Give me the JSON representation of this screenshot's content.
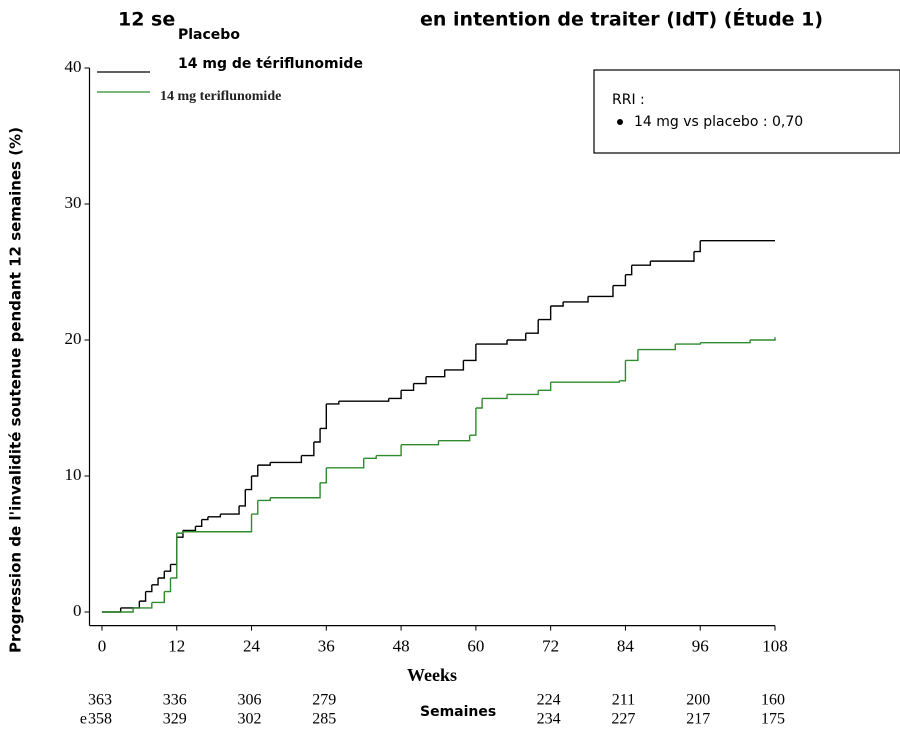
{
  "chart_data": {
    "type": "step",
    "title_fragments": [
      "12 se",
      "en intention de traiter (IdT) (Étude 1)"
    ],
    "y_label": "Progression de l'invalidité soutenue pendant 12 semaines (%)",
    "x_label": "Weeks",
    "x_label_overlay": "Semaines",
    "legend_original_label": "14 mg teriflunomide",
    "annotation": {
      "title": "RRI :",
      "items": [
        "14 mg vs placebo : 0,70"
      ]
    },
    "xlim": [
      -2,
      108
    ],
    "ylim": [
      -1,
      40
    ],
    "xticks": [
      0,
      12,
      24,
      36,
      48,
      60,
      72,
      84,
      96,
      108
    ],
    "yticks": [
      0,
      10,
      20,
      30,
      40
    ],
    "series": [
      {
        "name": "Placebo",
        "color": "#000000",
        "x": [
          0,
          3,
          6,
          7,
          8,
          9,
          10,
          11,
          12,
          13,
          15,
          16,
          17,
          19,
          22,
          23,
          24,
          25,
          27,
          32,
          34,
          35,
          36,
          38,
          46,
          48,
          50,
          52,
          55,
          58,
          60,
          65,
          68,
          70,
          72,
          74,
          78,
          82,
          84,
          85,
          88,
          95,
          96,
          108
        ],
        "values": [
          0,
          0.3,
          0.8,
          1.5,
          2,
          2.5,
          3,
          3.5,
          5.5,
          6,
          6.3,
          6.8,
          7,
          7.2,
          7.8,
          9,
          10,
          10.8,
          11,
          11.5,
          12.5,
          13.5,
          15.3,
          15.5,
          15.7,
          16.3,
          16.8,
          17.3,
          17.8,
          18.5,
          19.7,
          20,
          20.5,
          21.5,
          22.5,
          22.8,
          23.2,
          24,
          24.8,
          25.5,
          25.8,
          26.5,
          27.3,
          27.3
        ]
      },
      {
        "name": "14 mg de tériflunomide",
        "color": "#2e8b2e",
        "x": [
          0,
          5,
          8,
          10,
          11,
          12,
          13,
          24,
          25,
          27,
          35,
          36,
          42,
          44,
          48,
          54,
          59,
          60,
          61,
          65,
          70,
          72,
          83,
          84,
          86,
          92,
          96,
          104,
          108
        ],
        "values": [
          0,
          0.3,
          0.7,
          1.5,
          2.5,
          5.8,
          5.9,
          7.2,
          8.2,
          8.4,
          9.5,
          10.6,
          11.3,
          11.5,
          12.3,
          12.6,
          13,
          15,
          15.7,
          16,
          16.3,
          16.9,
          17,
          18.5,
          19.3,
          19.7,
          19.8,
          20,
          20.2
        ]
      }
    ],
    "at_risk": [
      {
        "label": null,
        "values": [
          363,
          336,
          306,
          279,
          null,
          null,
          224,
          211,
          200,
          160
        ]
      },
      {
        "label": "e",
        "values": [
          358,
          329,
          302,
          285,
          null,
          null,
          234,
          227,
          217,
          175
        ]
      }
    ]
  }
}
